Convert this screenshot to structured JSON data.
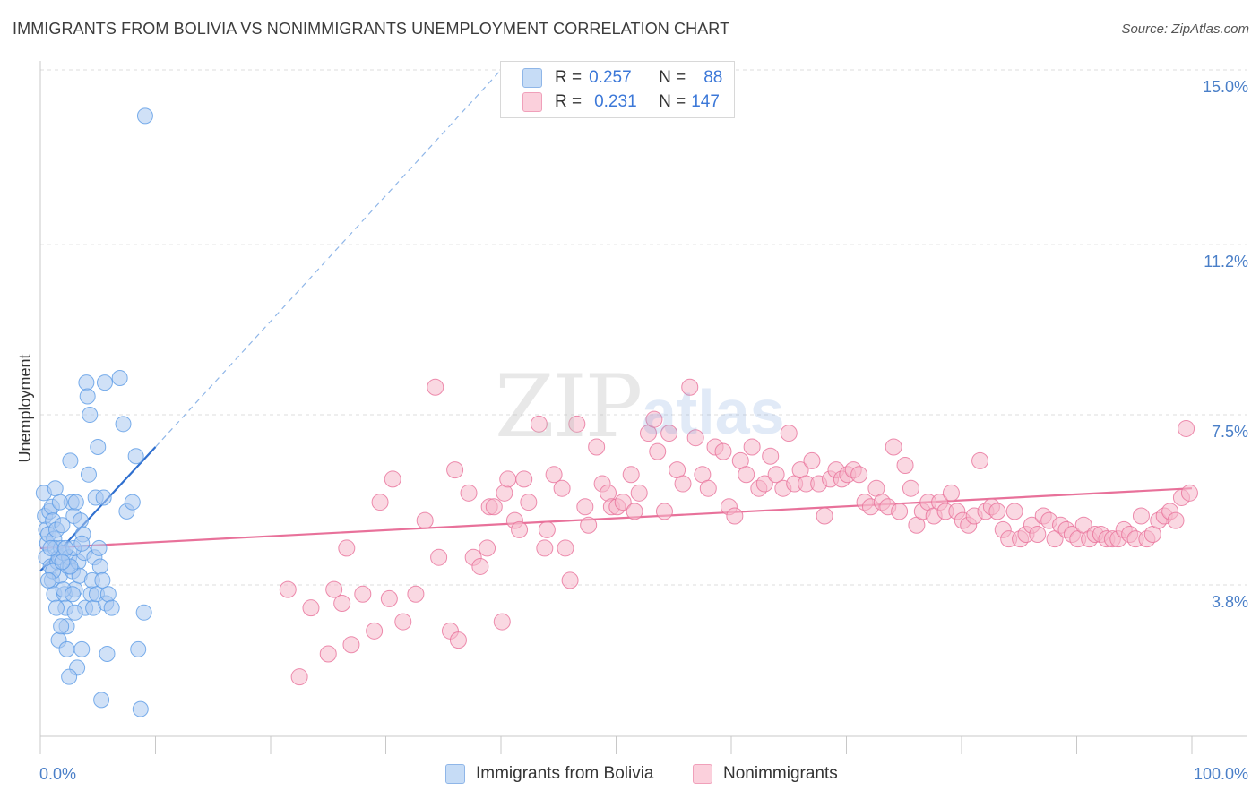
{
  "title": "IMMIGRANTS FROM BOLIVIA VS NONIMMIGRANTS UNEMPLOYMENT CORRELATION CHART",
  "source": "Source: ZipAtlas.com",
  "watermark": {
    "zip": "ZIP",
    "atlas": "atlas"
  },
  "legend_top": [
    {
      "r_key": "R =",
      "r_value": "0.257",
      "n_key": "N =",
      "n_value": "88",
      "color": "#a9c9f0"
    },
    {
      "r_key": "R =",
      "r_value": "0.231",
      "n_key": "N =",
      "n_value": "147",
      "color": "#f6b8cb"
    }
  ],
  "legend_bottom": [
    {
      "label": "Immigrants from Bolivia",
      "color": "#a9c9f0"
    },
    {
      "label": "Nonimmigrants",
      "color": "#f6b8cb"
    }
  ],
  "chart_data": {
    "type": "scatter",
    "title": "IMMIGRANTS FROM BOLIVIA VS NONIMMIGRANTS UNEMPLOYMENT CORRELATION CHART",
    "xlabel": "",
    "ylabel": "Unemployment",
    "xlim": [
      0,
      100
    ],
    "ylim": [
      0,
      15.5
    ],
    "x_tick_labels": [
      "0.0%",
      "100.0%"
    ],
    "y_ticks": [
      3.8,
      7.5,
      11.2,
      15.0
    ],
    "y_tick_labels": [
      "3.8%",
      "7.5%",
      "11.2%",
      "15.0%"
    ],
    "grid": true,
    "legend_position": "top-center",
    "series": [
      {
        "name": "Immigrants from Bolivia",
        "color": "#5b9be6",
        "fill": "#a9c9f0",
        "trend": {
          "x": [
            0,
            10
          ],
          "y": [
            4.1,
            6.8
          ],
          "extended": {
            "x": [
              10,
              40
            ],
            "y": [
              6.8,
              15.0
            ]
          }
        },
        "points": [
          [
            0.3,
            5.8
          ],
          [
            0.4,
            5.3
          ],
          [
            0.5,
            5.0
          ],
          [
            0.6,
            4.7
          ],
          [
            0.7,
            4.9
          ],
          [
            0.5,
            4.4
          ],
          [
            0.8,
            5.4
          ],
          [
            0.9,
            4.2
          ],
          [
            1.0,
            5.5
          ],
          [
            1.1,
            5.2
          ],
          [
            1.2,
            4.8
          ],
          [
            1.3,
            4.6
          ],
          [
            1.4,
            5.0
          ],
          [
            1.0,
            3.9
          ],
          [
            1.2,
            3.6
          ],
          [
            1.5,
            4.3
          ],
          [
            1.6,
            4.4
          ],
          [
            1.7,
            4.0
          ],
          [
            1.8,
            4.6
          ],
          [
            1.9,
            5.1
          ],
          [
            2.0,
            4.5
          ],
          [
            2.1,
            3.6
          ],
          [
            2.2,
            3.3
          ],
          [
            2.3,
            2.9
          ],
          [
            2.4,
            4.2
          ],
          [
            2.5,
            4.4
          ],
          [
            2.6,
            6.5
          ],
          [
            2.7,
            5.6
          ],
          [
            2.8,
            4.1
          ],
          [
            2.9,
            5.3
          ],
          [
            3.0,
            3.7
          ],
          [
            3.1,
            5.6
          ],
          [
            3.2,
            2.0
          ],
          [
            3.3,
            4.3
          ],
          [
            3.4,
            4.0
          ],
          [
            3.5,
            5.2
          ],
          [
            3.6,
            2.4
          ],
          [
            3.7,
            4.9
          ],
          [
            3.8,
            4.5
          ],
          [
            3.9,
            3.3
          ],
          [
            4.0,
            8.2
          ],
          [
            4.1,
            7.9
          ],
          [
            4.2,
            6.2
          ],
          [
            4.3,
            7.5
          ],
          [
            4.4,
            3.6
          ],
          [
            4.5,
            3.9
          ],
          [
            4.6,
            3.3
          ],
          [
            4.7,
            4.4
          ],
          [
            4.8,
            5.7
          ],
          [
            4.9,
            3.6
          ],
          [
            5.0,
            6.8
          ],
          [
            5.1,
            4.6
          ],
          [
            5.2,
            4.2
          ],
          [
            5.3,
            1.3
          ],
          [
            5.4,
            3.9
          ],
          [
            5.5,
            5.7
          ],
          [
            5.6,
            8.2
          ],
          [
            5.7,
            3.4
          ],
          [
            5.8,
            2.3
          ],
          [
            5.9,
            3.6
          ],
          [
            1.1,
            4.1
          ],
          [
            1.4,
            3.3
          ],
          [
            1.6,
            2.6
          ],
          [
            1.8,
            2.9
          ],
          [
            2.0,
            3.7
          ],
          [
            2.3,
            2.4
          ],
          [
            2.6,
            4.2
          ],
          [
            2.9,
            4.6
          ],
          [
            0.9,
            4.6
          ],
          [
            1.7,
            5.6
          ],
          [
            2.2,
            4.6
          ],
          [
            3.0,
            3.2
          ],
          [
            6.2,
            3.3
          ],
          [
            6.9,
            8.3
          ],
          [
            7.2,
            7.3
          ],
          [
            7.5,
            5.4
          ],
          [
            8.0,
            5.6
          ],
          [
            8.3,
            6.6
          ],
          [
            8.5,
            2.4
          ],
          [
            8.7,
            1.1
          ],
          [
            9.0,
            3.2
          ],
          [
            2.5,
            1.8
          ],
          [
            1.3,
            5.9
          ],
          [
            0.7,
            3.9
          ],
          [
            1.9,
            4.3
          ],
          [
            2.8,
            3.6
          ],
          [
            3.6,
            4.7
          ],
          [
            9.1,
            14.0
          ]
        ]
      },
      {
        "name": "Nonimmigrants",
        "color": "#e8719a",
        "fill": "#f6b8cb",
        "trend": {
          "x": [
            0,
            100
          ],
          "y": [
            4.6,
            5.9
          ]
        },
        "points": [
          [
            21.5,
            3.7
          ],
          [
            22.5,
            1.8
          ],
          [
            23.5,
            3.3
          ],
          [
            25.0,
            2.3
          ],
          [
            25.5,
            3.7
          ],
          [
            26.2,
            3.4
          ],
          [
            26.6,
            4.6
          ],
          [
            27.0,
            2.5
          ],
          [
            28.0,
            3.6
          ],
          [
            29.0,
            2.8
          ],
          [
            29.5,
            5.6
          ],
          [
            30.3,
            3.5
          ],
          [
            30.6,
            6.1
          ],
          [
            31.5,
            3.0
          ],
          [
            32.6,
            3.6
          ],
          [
            33.4,
            5.2
          ],
          [
            34.3,
            8.1
          ],
          [
            34.6,
            4.4
          ],
          [
            35.6,
            2.8
          ],
          [
            36.0,
            6.3
          ],
          [
            36.3,
            2.6
          ],
          [
            37.2,
            5.8
          ],
          [
            37.6,
            4.4
          ],
          [
            38.2,
            4.2
          ],
          [
            38.8,
            4.6
          ],
          [
            39.0,
            5.5
          ],
          [
            39.4,
            5.5
          ],
          [
            40.1,
            3.0
          ],
          [
            40.3,
            5.8
          ],
          [
            40.6,
            6.1
          ],
          [
            41.2,
            5.2
          ],
          [
            41.6,
            5.0
          ],
          [
            42.0,
            6.1
          ],
          [
            42.4,
            5.6
          ],
          [
            43.3,
            7.3
          ],
          [
            44.0,
            5.0
          ],
          [
            43.8,
            4.6
          ],
          [
            44.6,
            6.2
          ],
          [
            45.3,
            5.9
          ],
          [
            45.6,
            4.6
          ],
          [
            46.0,
            3.9
          ],
          [
            46.6,
            7.3
          ],
          [
            47.3,
            5.5
          ],
          [
            47.6,
            5.1
          ],
          [
            48.3,
            6.8
          ],
          [
            48.8,
            6.0
          ],
          [
            49.3,
            5.8
          ],
          [
            49.6,
            5.5
          ],
          [
            50.1,
            5.5
          ],
          [
            50.6,
            5.6
          ],
          [
            51.3,
            6.2
          ],
          [
            51.6,
            5.4
          ],
          [
            52.0,
            5.8
          ],
          [
            52.8,
            7.1
          ],
          [
            53.3,
            7.4
          ],
          [
            53.6,
            6.7
          ],
          [
            54.2,
            5.4
          ],
          [
            54.6,
            7.1
          ],
          [
            55.3,
            6.3
          ],
          [
            55.8,
            6.0
          ],
          [
            56.4,
            8.1
          ],
          [
            56.9,
            7.0
          ],
          [
            57.5,
            6.2
          ],
          [
            58.0,
            5.9
          ],
          [
            58.6,
            6.8
          ],
          [
            59.3,
            6.7
          ],
          [
            59.8,
            5.5
          ],
          [
            60.3,
            5.3
          ],
          [
            60.8,
            6.5
          ],
          [
            61.3,
            6.2
          ],
          [
            61.8,
            6.8
          ],
          [
            62.4,
            5.9
          ],
          [
            62.9,
            6.0
          ],
          [
            63.4,
            6.6
          ],
          [
            63.9,
            6.2
          ],
          [
            64.5,
            5.9
          ],
          [
            65.0,
            7.1
          ],
          [
            65.5,
            6.0
          ],
          [
            66.0,
            6.3
          ],
          [
            66.5,
            6.0
          ],
          [
            67.0,
            6.5
          ],
          [
            67.6,
            6.0
          ],
          [
            68.1,
            5.3
          ],
          [
            68.6,
            6.1
          ],
          [
            69.1,
            6.3
          ],
          [
            69.6,
            6.1
          ],
          [
            70.1,
            6.2
          ],
          [
            70.6,
            6.3
          ],
          [
            71.1,
            6.2
          ],
          [
            71.6,
            5.6
          ],
          [
            72.1,
            5.5
          ],
          [
            72.6,
            5.9
          ],
          [
            73.1,
            5.6
          ],
          [
            73.6,
            5.5
          ],
          [
            74.1,
            6.8
          ],
          [
            74.6,
            5.4
          ],
          [
            75.1,
            6.4
          ],
          [
            75.6,
            5.9
          ],
          [
            76.1,
            5.1
          ],
          [
            76.6,
            5.4
          ],
          [
            77.1,
            5.6
          ],
          [
            77.6,
            5.3
          ],
          [
            78.1,
            5.6
          ],
          [
            78.6,
            5.4
          ],
          [
            79.1,
            5.8
          ],
          [
            79.6,
            5.4
          ],
          [
            80.1,
            5.2
          ],
          [
            80.6,
            5.1
          ],
          [
            81.1,
            5.3
          ],
          [
            81.6,
            6.5
          ],
          [
            82.1,
            5.4
          ],
          [
            82.6,
            5.5
          ],
          [
            83.1,
            5.4
          ],
          [
            83.6,
            5.0
          ],
          [
            84.1,
            4.8
          ],
          [
            84.6,
            5.4
          ],
          [
            85.1,
            4.8
          ],
          [
            85.6,
            4.9
          ],
          [
            86.1,
            5.1
          ],
          [
            86.6,
            4.9
          ],
          [
            87.1,
            5.3
          ],
          [
            87.6,
            5.2
          ],
          [
            88.1,
            4.8
          ],
          [
            88.6,
            5.1
          ],
          [
            89.1,
            5.0
          ],
          [
            89.6,
            4.9
          ],
          [
            90.1,
            4.8
          ],
          [
            90.6,
            5.1
          ],
          [
            91.1,
            4.8
          ],
          [
            91.6,
            4.9
          ],
          [
            92.1,
            4.9
          ],
          [
            92.6,
            4.8
          ],
          [
            93.1,
            4.8
          ],
          [
            93.6,
            4.8
          ],
          [
            94.1,
            5.0
          ],
          [
            94.6,
            4.9
          ],
          [
            95.1,
            4.8
          ],
          [
            95.6,
            5.3
          ],
          [
            96.1,
            4.8
          ],
          [
            96.6,
            4.9
          ],
          [
            97.1,
            5.2
          ],
          [
            97.6,
            5.3
          ],
          [
            98.1,
            5.4
          ],
          [
            98.6,
            5.2
          ],
          [
            99.1,
            5.7
          ],
          [
            99.5,
            7.2
          ],
          [
            99.8,
            5.8
          ]
        ]
      }
    ]
  }
}
